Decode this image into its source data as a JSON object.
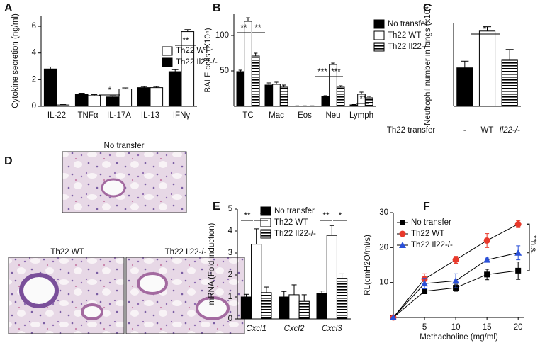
{
  "chart_data": [
    {
      "panel": "A",
      "type": "bar",
      "ylabel": "Cytokine secretion (ng/ml)",
      "categories": [
        "IL-22",
        "TNFα",
        "IL-17A",
        "IL-13",
        "IFNγ"
      ],
      "series": [
        {
          "name": "Th22 Il22-/-",
          "color": "#000000",
          "hatch": false,
          "values": [
            2.8,
            0.9,
            0.7,
            1.4,
            2.6
          ],
          "errors": [
            0.15,
            0.08,
            0.08,
            0.08,
            0.15
          ]
        },
        {
          "name": "Th22 WT",
          "color": "#ffffff",
          "hatch": false,
          "values": [
            0.1,
            0.8,
            1.3,
            1.4,
            5.6
          ],
          "errors": [
            0.03,
            0.08,
            0.08,
            0.08,
            0.15
          ]
        }
      ],
      "ylim": [
        0,
        6.8
      ],
      "yticks": [
        0,
        2,
        4,
        6
      ],
      "annotations": [
        {
          "text": "*"
        },
        {
          "text": "**"
        }
      ]
    },
    {
      "panel": "B",
      "type": "bar",
      "ylabel": "BALF cells (X10⁴)",
      "categories": [
        "TC",
        "Mac",
        "Eos",
        "Neu",
        "Lymph"
      ],
      "series": [
        {
          "name": "No transfer",
          "color": "#000000",
          "hatch": false,
          "values": [
            49,
            30,
            0.5,
            14,
            2
          ],
          "errors": [
            2,
            3,
            0.2,
            1,
            0.5
          ]
        },
        {
          "name": "Th22 WT",
          "color": "#ffffff",
          "hatch": false,
          "values": [
            120,
            31,
            0.5,
            59,
            17
          ],
          "errors": [
            5,
            3,
            0.2,
            2,
            3
          ]
        },
        {
          "name": "Th22 Il22-/-",
          "color": "#000000",
          "hatch": true,
          "values": [
            71,
            27,
            0.5,
            27,
            12
          ],
          "errors": [
            4,
            3,
            0.2,
            2,
            2
          ]
        }
      ],
      "ylim": [
        0,
        130
      ],
      "yticks": [
        50,
        100
      ],
      "annotations": [
        {
          "text": "**"
        },
        {
          "text": "**"
        },
        {
          "text": "***"
        },
        {
          "text": "***"
        },
        {
          "text": "**"
        }
      ]
    },
    {
      "panel": "C",
      "type": "bar",
      "ylabel": "Neutrophil number in lungs (x10⁴)",
      "xlabel": "Th22 transfer",
      "categories": [
        "-",
        "WT",
        "Il22-/-"
      ],
      "series": [
        {
          "name": null,
          "colors": [
            "#000000",
            "#ffffff",
            "#000000"
          ],
          "hatch": [
            false,
            false,
            true
          ],
          "values": [
            11.5,
            22.5,
            14
          ],
          "errors": [
            2,
            1.3,
            3
          ]
        }
      ],
      "ylim": [
        0,
        25
      ],
      "annotations": [
        {
          "text": "*"
        }
      ]
    },
    {
      "panel": "E",
      "type": "bar",
      "ylabel": "mRNA (Fold induction)",
      "categories": [
        "Cxcl1",
        "Cxcl2",
        "Cxcl3"
      ],
      "series": [
        {
          "name": "No transfer",
          "color": "#000000",
          "hatch": false,
          "values": [
            1.0,
            1.0,
            1.15
          ],
          "errors": [
            0.12,
            0.25,
            0.12
          ]
        },
        {
          "name": "Th22 WT",
          "color": "#ffffff",
          "hatch": false,
          "values": [
            3.4,
            1.1,
            3.8
          ],
          "errors": [
            0.7,
            0.45,
            0.45
          ]
        },
        {
          "name": "Th22 Il22-/-",
          "color": "#000000",
          "hatch": true,
          "values": [
            1.2,
            0.8,
            1.85
          ],
          "errors": [
            0.25,
            0.3,
            0.2
          ]
        }
      ],
      "ylim": [
        0,
        5
      ],
      "yticks": [
        0,
        1,
        2,
        3,
        4,
        5
      ],
      "annotations": [
        {
          "text": "**"
        },
        {
          "text": "*"
        },
        {
          "text": "**"
        },
        {
          "text": "*"
        }
      ]
    },
    {
      "panel": "F",
      "type": "line",
      "ylabel": "RL(cmH2O/ml/s)",
      "xlabel": "Methacholine (mg/ml)",
      "x": [
        0,
        5,
        10,
        15,
        20
      ],
      "series": [
        {
          "name": "No transfer",
          "color": "#000000",
          "marker": "square",
          "values": [
            0,
            7.5,
            8.5,
            12.3,
            13.4
          ],
          "errors": [
            0,
            0.7,
            1,
            1.5,
            2.5
          ]
        },
        {
          "name": "Th22 WT",
          "color": "#e8392b",
          "marker": "circle",
          "values": [
            0,
            11,
            16.5,
            22,
            26.7
          ],
          "errors": [
            0,
            1.5,
            1,
            2,
            1
          ]
        },
        {
          "name": "Th22 Il22-/-",
          "color": "#2a50d8",
          "marker": "triangle",
          "values": [
            0,
            9.7,
            10.5,
            16.5,
            18.5
          ],
          "errors": [
            0,
            1.5,
            2,
            0.5,
            2
          ]
        }
      ],
      "xlim": [
        0,
        21
      ],
      "xticks": [
        5,
        10,
        15,
        20
      ],
      "ylim": [
        0,
        30
      ],
      "yticks": [
        10,
        20,
        30
      ],
      "annotations": [
        {
          "text": "**"
        },
        {
          "text": "n.s."
        }
      ]
    }
  ],
  "histology": {
    "panel": "D",
    "images": [
      {
        "title": "No transfer"
      },
      {
        "title": "Th22 WT"
      },
      {
        "title": "Th22 Il22-/-"
      }
    ]
  }
}
